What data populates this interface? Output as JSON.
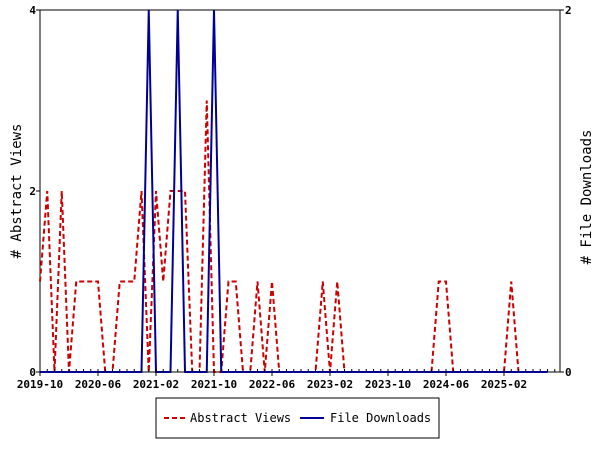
{
  "chart_data": {
    "type": "line",
    "x_axis": {
      "tick_labels": [
        "2019-10",
        "2020-06",
        "2021-02",
        "2021-10",
        "2022-06",
        "2023-02",
        "2023-10",
        "2024-06",
        "2025-02"
      ]
    },
    "y_left": {
      "label": "# Abstract Views",
      "ylim": [
        0,
        4
      ],
      "tick_labels": [
        "0",
        "2",
        "4"
      ]
    },
    "y_right": {
      "label": "# File Downloads",
      "ylim": [
        0,
        2
      ],
      "tick_labels": [
        "0",
        "2"
      ]
    },
    "legend_position": "bottom-center",
    "series": [
      {
        "name": "Abstract Views",
        "axis": "left",
        "color": "#cc0000",
        "dashed": true,
        "x": [
          "2019-10",
          "2019-11",
          "2019-12",
          "2020-01",
          "2020-02",
          "2020-03",
          "2020-04",
          "2020-05",
          "2020-06",
          "2020-07",
          "2020-08",
          "2020-09",
          "2020-10",
          "2020-11",
          "2020-12",
          "2021-01",
          "2021-02",
          "2021-03",
          "2021-04",
          "2021-05",
          "2021-06",
          "2021-07",
          "2021-08",
          "2021-09",
          "2021-10",
          "2021-11",
          "2021-12",
          "2022-01",
          "2022-02",
          "2022-03",
          "2022-04",
          "2022-05",
          "2022-06",
          "2022-07",
          "2022-08",
          "2022-09",
          "2022-10",
          "2022-11",
          "2022-12",
          "2023-01",
          "2023-02",
          "2023-03",
          "2023-04",
          "2023-05",
          "2023-06",
          "2023-07",
          "2023-08",
          "2023-09",
          "2023-10",
          "2023-11",
          "2023-12",
          "2024-01",
          "2024-02",
          "2024-03",
          "2024-04",
          "2024-05",
          "2024-06",
          "2024-07",
          "2024-08",
          "2024-09",
          "2024-10",
          "2024-11",
          "2024-12",
          "2025-01",
          "2025-02",
          "2025-03",
          "2025-04",
          "2025-05",
          "2025-06",
          "2025-07",
          "2025-08"
        ],
        "values": [
          1,
          2,
          0,
          2,
          0,
          1,
          1,
          1,
          1,
          0,
          0,
          1,
          1,
          1,
          2,
          0,
          2,
          1,
          2,
          2,
          2,
          0,
          0,
          3,
          0,
          0,
          1,
          1,
          0,
          0,
          1,
          0,
          1,
          0,
          0,
          0,
          0,
          0,
          0,
          1,
          0,
          1,
          0,
          0,
          0,
          0,
          0,
          0,
          0,
          0,
          0,
          0,
          0,
          0,
          0,
          1,
          1,
          0,
          0,
          0,
          0,
          0,
          0,
          0,
          0,
          1,
          0,
          0,
          0,
          0,
          0
        ]
      },
      {
        "name": "File Downloads",
        "axis": "right",
        "color": "#000099",
        "dashed": false,
        "x": [
          "2019-10",
          "2019-11",
          "2019-12",
          "2020-01",
          "2020-02",
          "2020-03",
          "2020-04",
          "2020-05",
          "2020-06",
          "2020-07",
          "2020-08",
          "2020-09",
          "2020-10",
          "2020-11",
          "2020-12",
          "2021-01",
          "2021-02",
          "2021-03",
          "2021-04",
          "2021-05",
          "2021-06",
          "2021-07",
          "2021-08",
          "2021-09",
          "2021-10",
          "2021-11",
          "2021-12",
          "2022-01",
          "2022-02",
          "2022-03",
          "2022-04",
          "2022-05",
          "2022-06",
          "2022-07",
          "2022-08",
          "2022-09",
          "2022-10",
          "2022-11",
          "2022-12",
          "2023-01",
          "2023-02",
          "2023-03",
          "2023-04",
          "2023-05",
          "2023-06",
          "2023-07",
          "2023-08",
          "2023-09",
          "2023-10",
          "2023-11",
          "2023-12",
          "2024-01",
          "2024-02",
          "2024-03",
          "2024-04",
          "2024-05",
          "2024-06",
          "2024-07",
          "2024-08",
          "2024-09",
          "2024-10",
          "2024-11",
          "2024-12",
          "2025-01",
          "2025-02",
          "2025-03",
          "2025-04",
          "2025-05",
          "2025-06",
          "2025-07",
          "2025-08"
        ],
        "values": [
          0,
          0,
          0,
          0,
          0,
          0,
          0,
          0,
          0,
          0,
          0,
          0,
          0,
          0,
          0,
          2,
          0,
          0,
          0,
          2,
          0,
          0,
          0,
          0,
          2,
          0,
          0,
          0,
          0,
          0,
          0,
          0,
          0,
          0,
          0,
          0,
          0,
          0,
          0,
          0,
          0,
          0,
          0,
          0,
          0,
          0,
          0,
          0,
          0,
          0,
          0,
          0,
          0,
          0,
          0,
          0,
          0,
          0,
          0,
          0,
          0,
          0,
          0,
          0,
          0,
          0,
          0,
          0,
          0,
          0,
          0
        ]
      }
    ]
  }
}
